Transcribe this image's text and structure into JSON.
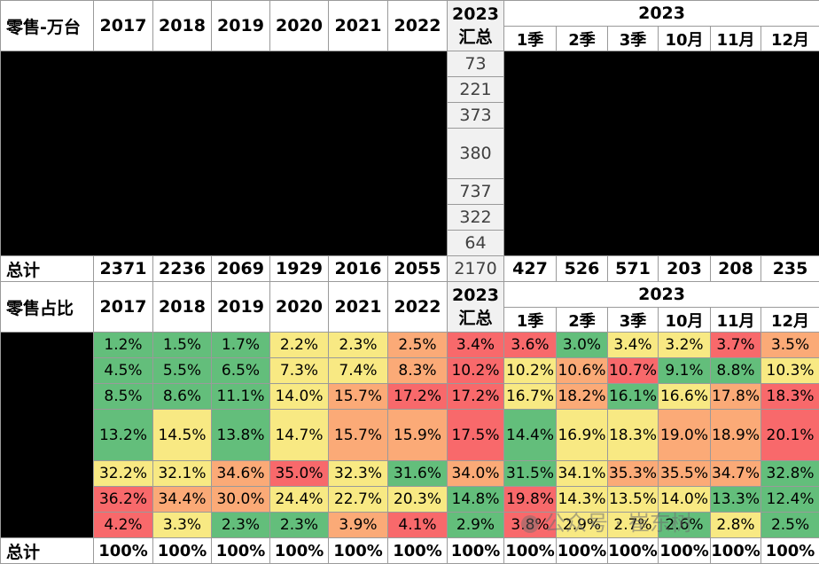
{
  "colors": {
    "green": "#63be7b",
    "yellow": "#f8e983",
    "orange": "#fbaa77",
    "red": "#f8696b",
    "header_grey": "#f1f1f1"
  },
  "top": {
    "corner": "零售-万台",
    "years": [
      "2017",
      "2018",
      "2019",
      "2020",
      "2021",
      "2022"
    ],
    "summary_label": [
      "2023",
      "汇总"
    ],
    "group_label": "2023",
    "periods": [
      "1季",
      "2季",
      "3季",
      "10月",
      "11月",
      "12月"
    ],
    "summary_values": [
      "73",
      "221",
      "373",
      "380",
      "737",
      "322",
      "64"
    ],
    "total_label": "总计",
    "total_years": [
      "2371",
      "2236",
      "2069",
      "1929",
      "2016",
      "2055"
    ],
    "total_summary": "2170",
    "total_periods": [
      "427",
      "526",
      "571",
      "203",
      "208",
      "235"
    ]
  },
  "bottom": {
    "corner": "零售占比",
    "years": [
      "2017",
      "2018",
      "2019",
      "2020",
      "2021",
      "2022"
    ],
    "summary_label": [
      "2023",
      "汇总"
    ],
    "group_label": "2023",
    "periods": [
      "1季",
      "2季",
      "3季",
      "10月",
      "11月",
      "12月"
    ],
    "rows": [
      [
        "1.2%",
        "1.5%",
        "1.7%",
        "2.2%",
        "2.3%",
        "2.5%",
        "3.4%",
        "3.6%",
        "3.0%",
        "3.4%",
        "3.2%",
        "3.7%",
        "3.5%"
      ],
      [
        "4.5%",
        "5.5%",
        "6.5%",
        "7.3%",
        "7.4%",
        "8.3%",
        "10.2%",
        "10.2%",
        "10.6%",
        "10.7%",
        "9.1%",
        "8.8%",
        "10.3%"
      ],
      [
        "8.5%",
        "8.6%",
        "11.1%",
        "14.0%",
        "15.7%",
        "17.2%",
        "17.2%",
        "16.7%",
        "18.2%",
        "16.1%",
        "16.6%",
        "17.8%",
        "18.3%"
      ],
      [
        "13.2%",
        "14.5%",
        "13.8%",
        "14.7%",
        "15.7%",
        "15.9%",
        "17.5%",
        "14.4%",
        "16.9%",
        "18.3%",
        "19.0%",
        "18.9%",
        "20.1%"
      ],
      [
        "32.2%",
        "32.1%",
        "34.6%",
        "35.0%",
        "32.3%",
        "31.6%",
        "34.0%",
        "31.5%",
        "34.1%",
        "35.3%",
        "35.5%",
        "34.7%",
        "32.8%"
      ],
      [
        "36.2%",
        "34.4%",
        "30.0%",
        "24.4%",
        "22.7%",
        "20.3%",
        "14.8%",
        "19.8%",
        "14.3%",
        "13.5%",
        "14.0%",
        "13.3%",
        "12.4%"
      ],
      [
        "4.2%",
        "3.3%",
        "2.3%",
        "2.3%",
        "3.9%",
        "4.1%",
        "2.9%",
        "3.8%",
        "2.9%",
        "2.7%",
        "2.6%",
        "2.8%",
        "2.5%"
      ]
    ],
    "row_colors": [
      [
        "green",
        "green",
        "green",
        "yellow",
        "yellow",
        "orange",
        "red",
        "red",
        "green",
        "yellow",
        "yellow",
        "red",
        "orange"
      ],
      [
        "green",
        "green",
        "green",
        "yellow",
        "yellow",
        "orange",
        "red",
        "yellow",
        "orange",
        "red",
        "green",
        "green",
        "yellow"
      ],
      [
        "green",
        "green",
        "green",
        "yellow",
        "orange",
        "red",
        "red",
        "yellow",
        "orange",
        "green",
        "yellow",
        "orange",
        "red"
      ],
      [
        "green",
        "yellow",
        "green",
        "yellow",
        "orange",
        "orange",
        "red",
        "green",
        "yellow",
        "yellow",
        "orange",
        "orange",
        "red"
      ],
      [
        "yellow",
        "yellow",
        "orange",
        "red",
        "yellow",
        "green",
        "orange",
        "green",
        "yellow",
        "orange",
        "orange",
        "orange",
        "green"
      ],
      [
        "red",
        "orange",
        "orange",
        "yellow",
        "yellow",
        "yellow",
        "green",
        "red",
        "yellow",
        "yellow",
        "yellow",
        "green",
        "green"
      ],
      [
        "red",
        "yellow",
        "green",
        "green",
        "orange",
        "red",
        "green",
        "red",
        "yellow",
        "yellow",
        "green",
        "yellow",
        "green"
      ]
    ],
    "total_label": "总计",
    "total_values": [
      "100%",
      "100%",
      "100%",
      "100%",
      "100%",
      "100%",
      "100%",
      "100%",
      "100%",
      "100%",
      "100%",
      "100%",
      "100%"
    ]
  },
  "watermark": "公众号 · 崔东树"
}
